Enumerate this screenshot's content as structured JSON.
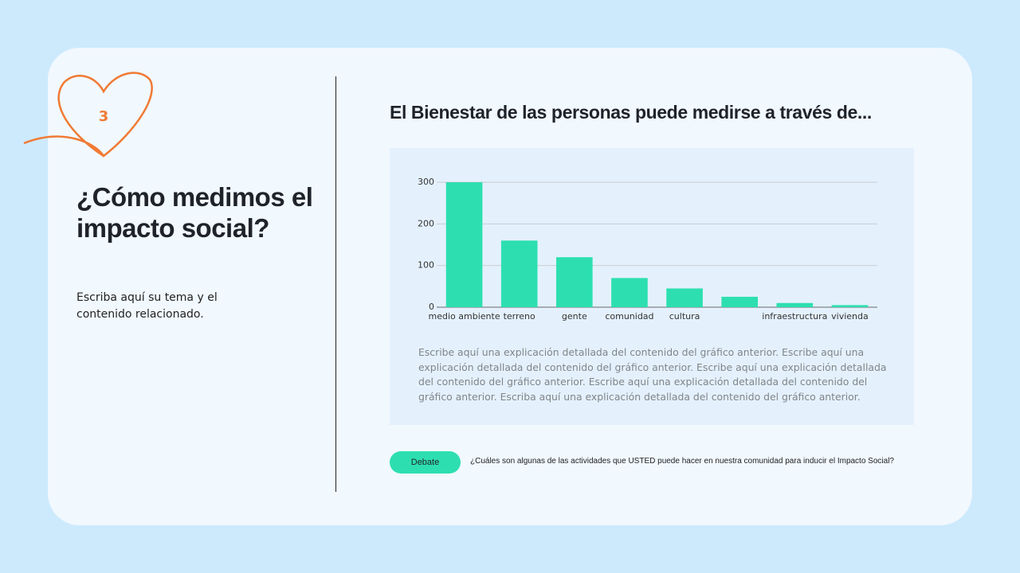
{
  "slide": {
    "number": "3",
    "heading": "¿Cómo medimos el impacto social?",
    "subtitle": "Escriba aquí su tema y el contenido relacionado.",
    "title": "El Bienestar de las personas puede medirse a través de...",
    "explanation": "Escribe aquí una explicación detallada del contenido del gráfico anterior. Escribe aquí una explicación detallada del contenido del gráfico anterior. Escribe aquí una explicación detallada del contenido del gráfico anterior. Escribe aquí una explicación detallada del contenido del gráfico anterior. Escriba aquí una explicación detallada del contenido del gráfico anterior.",
    "button": "Debate",
    "question": "¿Cuáles son algunas de las actividades que USTED puede hacer en nuestra comunidad para inducir el Impacto Social?"
  },
  "chart_data": {
    "type": "bar",
    "categories": [
      "medio ambiente",
      "terreno",
      "gente",
      "comunidad",
      "cultura",
      null,
      "infraestructura",
      "vivienda"
    ],
    "values": [
      300,
      160,
      120,
      70,
      45,
      25,
      10,
      5
    ],
    "color": "#2ddfb0",
    "ylim": [
      0,
      300
    ],
    "yticks": [
      0,
      100,
      200,
      300
    ],
    "grid": true
  }
}
